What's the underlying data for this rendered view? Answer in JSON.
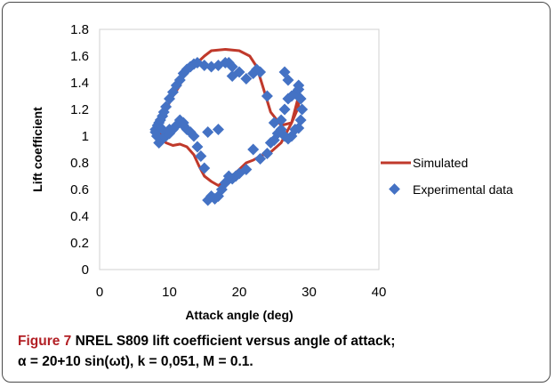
{
  "chart_data": {
    "type": "scatter",
    "xlabel": "Attack angle (deg)",
    "ylabel": "Lift coefficient",
    "xlim": [
      0,
      40
    ],
    "ylim": [
      0,
      1.8
    ],
    "x_ticks": [
      "0",
      "10",
      "20",
      "30",
      "40"
    ],
    "y_ticks": [
      "0",
      "0.2",
      "0.4",
      "0.6",
      "0.8",
      "1",
      "1.2",
      "1.4",
      "1.6",
      "1.8"
    ],
    "grid": false,
    "legend_position": "right",
    "series": [
      {
        "name": "Simulated",
        "type": "line",
        "color": "#c0392b",
        "x": [
          12.0,
          13.0,
          14.0,
          15.0,
          16.0,
          18.0,
          20.0,
          21.5,
          22.5,
          23.5,
          24.5,
          26.0,
          27.5,
          28.5,
          28.5,
          27.5,
          26.0,
          24.5,
          23.0,
          22.0,
          21.0,
          20.0,
          18.5,
          17.0,
          16.0,
          15.0,
          14.2,
          13.5,
          12.5,
          11.5,
          10.5,
          9.5,
          8.8,
          8.5,
          8.8,
          9.5,
          10.5,
          11.5,
          12.0
        ],
        "y": [
          1.46,
          1.5,
          1.55,
          1.6,
          1.64,
          1.65,
          1.64,
          1.6,
          1.52,
          1.35,
          1.18,
          1.08,
          1.1,
          1.22,
          1.3,
          1.1,
          0.95,
          0.88,
          0.85,
          0.82,
          0.8,
          0.75,
          0.68,
          0.63,
          0.66,
          0.7,
          0.78,
          0.86,
          0.92,
          0.94,
          0.93,
          0.95,
          1.0,
          1.05,
          1.12,
          1.2,
          1.3,
          1.38,
          1.46
        ]
      },
      {
        "name": "Experimental data",
        "type": "scatter",
        "color": "#4472c4",
        "x": [
          8.0,
          8.3,
          8.5,
          8.7,
          9.0,
          9.2,
          9.5,
          10.0,
          10.5,
          11.0,
          11.5,
          12.0,
          12.5,
          13.0,
          13.5,
          14.0,
          15.0,
          16.0,
          17.0,
          18.0,
          18.5,
          19.0,
          20.0,
          21.0,
          22.0,
          23.0,
          24.0,
          25.0,
          26.0,
          26.5,
          27.0,
          27.5,
          28.0,
          28.5,
          28.8,
          29.0,
          28.8,
          28.5,
          28.0,
          27.5,
          27.0,
          26.5,
          26.0,
          25.5,
          25.0,
          24.5,
          24.0,
          23.0,
          22.0,
          21.0,
          20.0,
          19.5,
          19.0,
          18.5,
          18.0,
          17.5,
          17.0,
          16.5,
          16.0,
          15.5,
          15.0,
          14.5,
          14.0,
          13.5,
          13.0,
          12.5,
          12.0,
          11.5,
          11.0,
          10.5,
          10.0,
          9.5,
          9.0,
          8.5,
          8.2,
          8.0,
          9.0,
          10.0,
          12.0,
          15.5,
          17.0,
          19.0,
          22.5,
          26.5,
          28.5,
          27.0
        ],
        "y": [
          1.05,
          1.08,
          1.1,
          1.12,
          1.15,
          1.18,
          1.22,
          1.28,
          1.33,
          1.38,
          1.42,
          1.47,
          1.5,
          1.52,
          1.54,
          1.55,
          1.53,
          1.52,
          1.53,
          1.55,
          1.55,
          1.52,
          1.48,
          1.43,
          1.47,
          1.48,
          1.3,
          1.1,
          1.12,
          1.2,
          1.28,
          1.3,
          1.32,
          1.35,
          1.28,
          1.2,
          1.12,
          1.06,
          1.05,
          1.0,
          0.98,
          1.0,
          1.05,
          1.02,
          0.97,
          0.95,
          0.87,
          0.83,
          0.9,
          0.75,
          0.72,
          0.7,
          0.68,
          0.7,
          0.65,
          0.6,
          0.55,
          0.53,
          0.55,
          0.52,
          0.76,
          0.85,
          0.92,
          1.0,
          1.03,
          1.05,
          1.1,
          1.12,
          1.08,
          1.05,
          1.02,
          1.0,
          0.98,
          0.95,
          1.0,
          1.03,
          1.05,
          1.05,
          1.08,
          1.03,
          1.05,
          1.45,
          1.5,
          1.48,
          1.38,
          1.42
        ]
      }
    ]
  },
  "caption": {
    "figure_label": "Figure 7",
    "line1": "NREL S809 lift coefficient versus angle of attack;",
    "line2": "α = 20+10 sin(ωt), k = 0,051, M = 0.1."
  }
}
